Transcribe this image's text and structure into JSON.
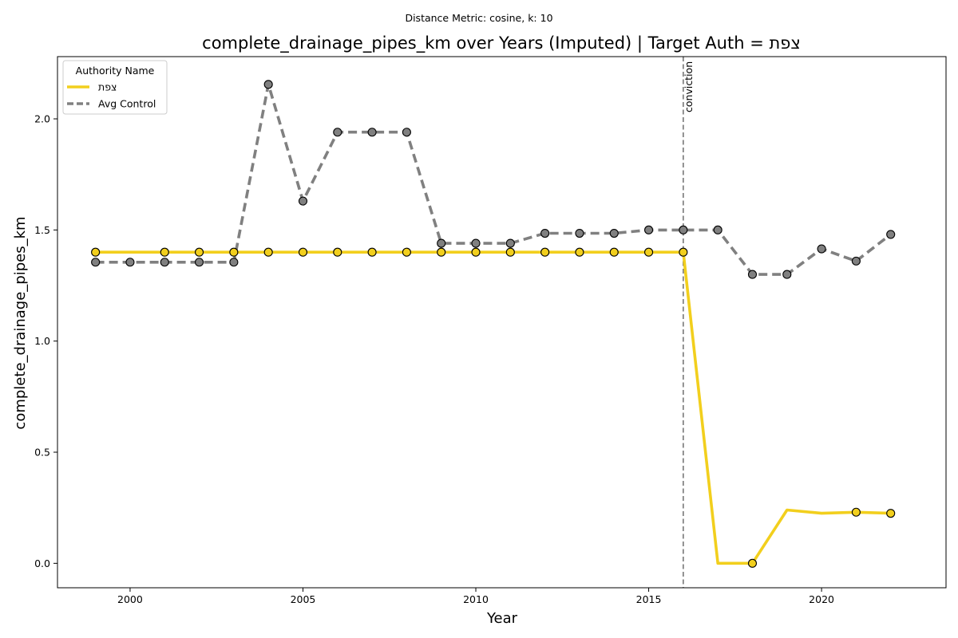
{
  "chart_data": {
    "type": "line",
    "suptitle": "Distance Metric: cosine, k: 10",
    "title": "complete_drainage_pipes_km over Years (Imputed) | Target Auth = צפת",
    "xlabel": "Year",
    "ylabel": "complete_drainage_pipes_km",
    "xlim": [
      1997.9,
      2023.6
    ],
    "ylim": [
      -0.11,
      2.28
    ],
    "xticks": [
      2000,
      2005,
      2010,
      2015,
      2020
    ],
    "yticks": [
      0.0,
      0.5,
      1.0,
      1.5,
      2.0
    ],
    "ytick_labels": [
      "0.0",
      "0.5",
      "1.0",
      "1.5",
      "2.0"
    ],
    "legend": {
      "title": "Authority Name",
      "placement": "top-left"
    },
    "annotation": {
      "x": 2016,
      "label": "conviction",
      "style": "dashed vertical line"
    },
    "series": [
      {
        "name": "צפת",
        "color": "#f2cf1d",
        "line_style": "solid",
        "x": [
          1999,
          2000,
          2001,
          2002,
          2003,
          2004,
          2005,
          2006,
          2007,
          2008,
          2009,
          2010,
          2011,
          2012,
          2013,
          2014,
          2015,
          2016,
          2017,
          2018,
          2019,
          2020,
          2021,
          2022
        ],
        "values": [
          1.4,
          1.4,
          1.4,
          1.4,
          1.4,
          1.4,
          1.4,
          1.4,
          1.4,
          1.4,
          1.4,
          1.4,
          1.4,
          1.4,
          1.4,
          1.4,
          1.4,
          1.4,
          0.0,
          0.0,
          0.24,
          0.225,
          0.23,
          0.225
        ],
        "markers": [
          1999,
          2001,
          2002,
          2003,
          2004,
          2005,
          2006,
          2007,
          2008,
          2009,
          2010,
          2011,
          2012,
          2013,
          2014,
          2015,
          2016,
          2018,
          2021,
          2022
        ]
      },
      {
        "name": "Avg Control",
        "color": "#808080",
        "line_style": "dashed",
        "x": [
          1999,
          2000,
          2001,
          2002,
          2003,
          2004,
          2005,
          2006,
          2007,
          2008,
          2009,
          2010,
          2011,
          2012,
          2013,
          2014,
          2015,
          2016,
          2017,
          2018,
          2019,
          2020,
          2021,
          2022
        ],
        "values": [
          1.355,
          1.355,
          1.355,
          1.355,
          1.355,
          2.155,
          1.63,
          1.94,
          1.94,
          1.94,
          1.44,
          1.44,
          1.44,
          1.485,
          1.485,
          1.485,
          1.5,
          1.5,
          1.5,
          1.3,
          1.3,
          1.415,
          1.36,
          1.48
        ],
        "markers": [
          1999,
          2000,
          2001,
          2002,
          2003,
          2004,
          2005,
          2006,
          2007,
          2008,
          2009,
          2010,
          2011,
          2012,
          2013,
          2014,
          2015,
          2016,
          2017,
          2018,
          2019,
          2020,
          2021,
          2022
        ]
      }
    ]
  }
}
